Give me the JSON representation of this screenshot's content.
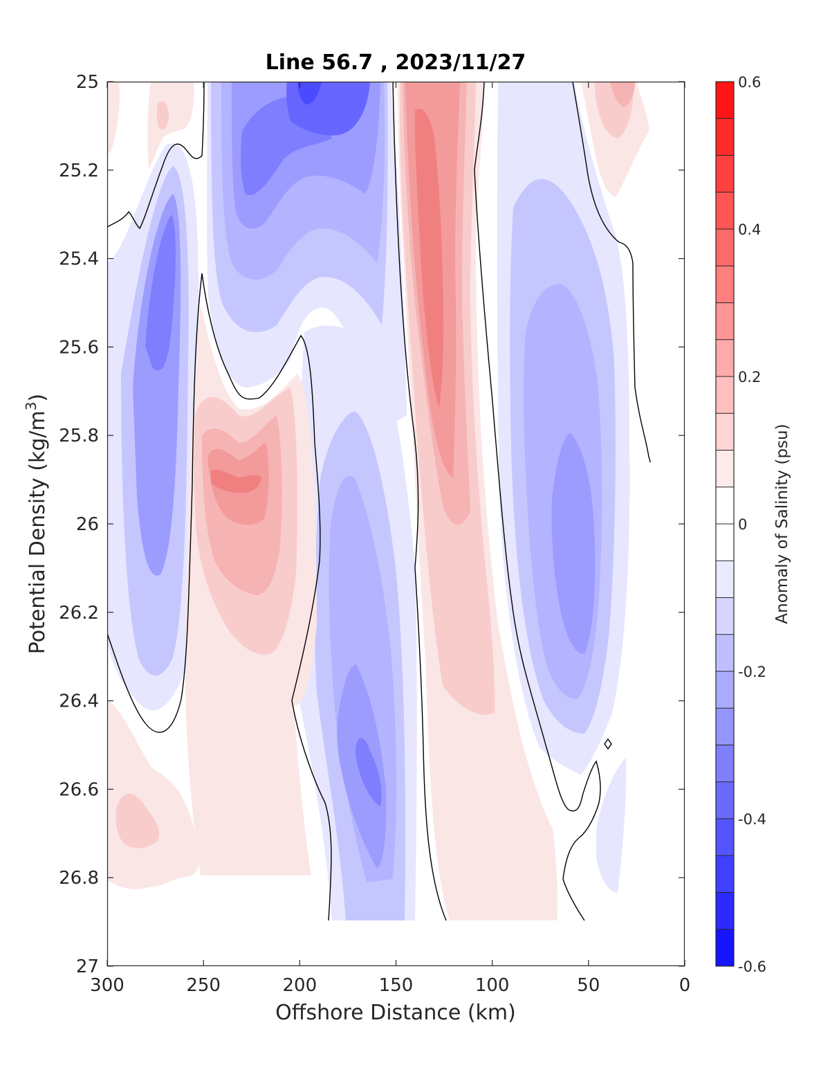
{
  "chart_data": {
    "type": "heatmap",
    "title": "Line 56.7 , 2023/11/27",
    "xlabel": "Offshore Distance (km)",
    "ylabel": "Potential Density (kg/m3)",
    "ylabel_main": "Potential Density (kg/m",
    "ylabel_sup": "3",
    "ylabel_end": ")",
    "xlim": [
      300,
      0
    ],
    "ylim": [
      25,
      27
    ],
    "x_reversed": true,
    "y_reversed": true,
    "x_ticks": [
      300,
      250,
      200,
      150,
      100,
      50,
      0
    ],
    "y_ticks": [
      25,
      25.2,
      25.4,
      25.6,
      25.8,
      26,
      26.2,
      26.4,
      26.6,
      26.8,
      27
    ],
    "y_tick_labels": [
      "25",
      "25.2",
      "25.4",
      "25.6",
      "25.8",
      "26",
      "26.2",
      "26.4",
      "26.6",
      "26.8",
      "27"
    ],
    "grid": false,
    "colorbar": {
      "label": "Anomaly of Salinity (psu)",
      "range": [
        -0.6,
        0.6
      ],
      "step": 0.05,
      "ticks": [
        0.6,
        0.4,
        0.2,
        0,
        -0.2,
        -0.4,
        -0.6
      ],
      "tick_labels": [
        "0.6",
        "0.4",
        "0.2",
        "0",
        "-0.2",
        "-0.4",
        "-0.6"
      ],
      "colormap": "blue-white-red",
      "neg_color": "#0000ff",
      "pos_color": "#ff0000",
      "zero_color": "#ffffff"
    },
    "zero_contour": "black",
    "anomaly_features": [
      {
        "x": 270,
        "y": 25.55,
        "value": -0.33
      },
      {
        "x": 215,
        "y": 25.3,
        "value": -0.32
      },
      {
        "x": 195,
        "y": 25.05,
        "value": -0.45
      },
      {
        "x": 160,
        "y": 26.55,
        "value": -0.28
      },
      {
        "x": 50,
        "y": 26.05,
        "value": -0.25
      },
      {
        "x": 130,
        "y": 25.45,
        "value": 0.3
      },
      {
        "x": 235,
        "y": 25.9,
        "value": 0.27
      },
      {
        "x": 30,
        "y": 25.05,
        "value": 0.18
      },
      {
        "x": 280,
        "y": 26.7,
        "value": 0.13
      }
    ]
  }
}
